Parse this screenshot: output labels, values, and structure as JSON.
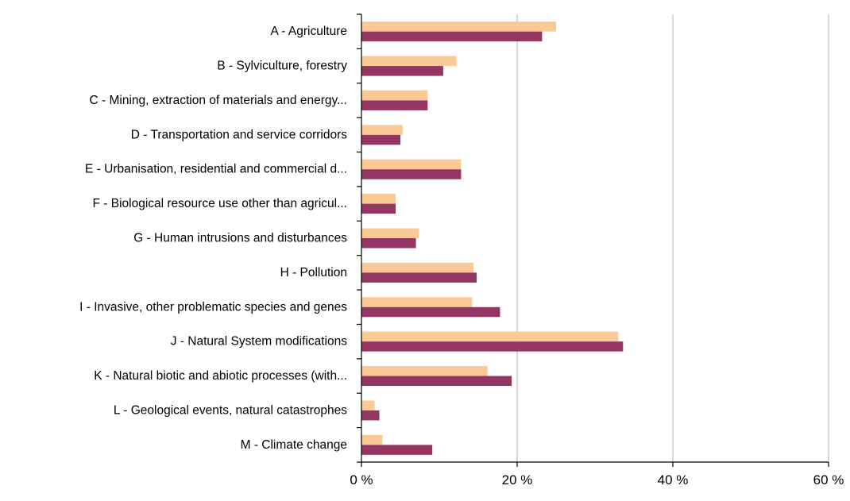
{
  "chart_data": {
    "type": "bar",
    "orientation": "horizontal",
    "categories": [
      "A - Agriculture",
      "B - Sylviculture, forestry",
      "C - Mining, extraction of materials and energy...",
      "D - Transportation and service corridors",
      "E - Urbanisation, residential and commercial d...",
      "F - Biological resource use other than agricul...",
      "G - Human intrusions and disturbances",
      "H - Pollution",
      "I - Invasive, other problematic species and genes",
      "J - Natural System modifications",
      "K - Natural biotic and abiotic processes (with...",
      "L - Geological events, natural catastrophes",
      "M - Climate change"
    ],
    "series": [
      {
        "color": "#fbc996",
        "values": [
          25.0,
          12.2,
          8.5,
          5.3,
          12.8,
          4.4,
          7.4,
          14.4,
          14.2,
          33.0,
          16.2,
          1.7,
          2.7
        ]
      },
      {
        "color": "#953564",
        "values": [
          23.2,
          10.5,
          8.5,
          5.0,
          12.8,
          4.4,
          7.0,
          14.8,
          17.8,
          33.6,
          19.3,
          2.3,
          9.1
        ]
      }
    ],
    "xlim": [
      0,
      60
    ],
    "xticks": [
      0,
      20,
      40,
      60
    ],
    "xtick_labels": [
      "0 %",
      "20 %",
      "40 %",
      "60 %"
    ],
    "grid": "vertical",
    "legend": "none",
    "title": "",
    "xlabel": "",
    "ylabel": ""
  }
}
